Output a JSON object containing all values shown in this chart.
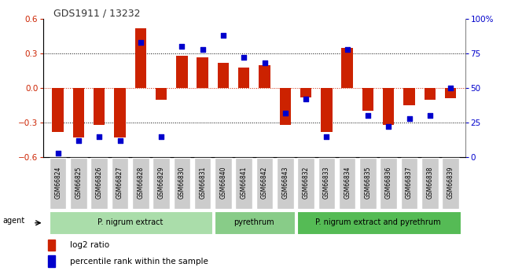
{
  "title": "GDS1911 / 13232",
  "samples": [
    "GSM66824",
    "GSM66825",
    "GSM66826",
    "GSM66827",
    "GSM66828",
    "GSM66829",
    "GSM66830",
    "GSM66831",
    "GSM66840",
    "GSM66841",
    "GSM66842",
    "GSM66843",
    "GSM66832",
    "GSM66833",
    "GSM66834",
    "GSM66835",
    "GSM66836",
    "GSM66837",
    "GSM66838",
    "GSM66839"
  ],
  "log2_ratio": [
    -0.38,
    -0.43,
    -0.32,
    -0.43,
    0.52,
    -0.1,
    0.28,
    0.27,
    0.22,
    0.18,
    0.2,
    -0.32,
    -0.08,
    -0.38,
    0.35,
    -0.2,
    -0.32,
    -0.15,
    -0.1,
    -0.09
  ],
  "percentile": [
    3,
    12,
    15,
    12,
    83,
    15,
    80,
    78,
    88,
    72,
    68,
    32,
    42,
    15,
    78,
    30,
    22,
    28,
    30,
    50
  ],
  "groups": [
    {
      "label": "P. nigrum extract",
      "start": 0,
      "end": 8,
      "color": "#aaddaa"
    },
    {
      "label": "pyrethrum",
      "start": 8,
      "end": 12,
      "color": "#88cc88"
    },
    {
      "label": "P. nigrum extract and pyrethrum",
      "start": 12,
      "end": 20,
      "color": "#55bb55"
    }
  ],
  "bar_color": "#cc2200",
  "dot_color": "#0000cc",
  "zero_line_color": "#cc2200",
  "grid_color": "#000000",
  "ylim": [
    -0.6,
    0.6
  ],
  "y2lim": [
    0,
    100
  ],
  "yticks": [
    -0.6,
    -0.3,
    0.0,
    0.3,
    0.6
  ],
  "y2ticks": [
    0,
    25,
    50,
    75,
    100
  ],
  "agent_label": "agent",
  "legend_log2": "log2 ratio",
  "legend_pct": "percentile rank within the sample",
  "bar_width": 0.55,
  "sample_box_color": "#cccccc",
  "group_box_text_color": "#000000",
  "bg_color": "#ffffff"
}
